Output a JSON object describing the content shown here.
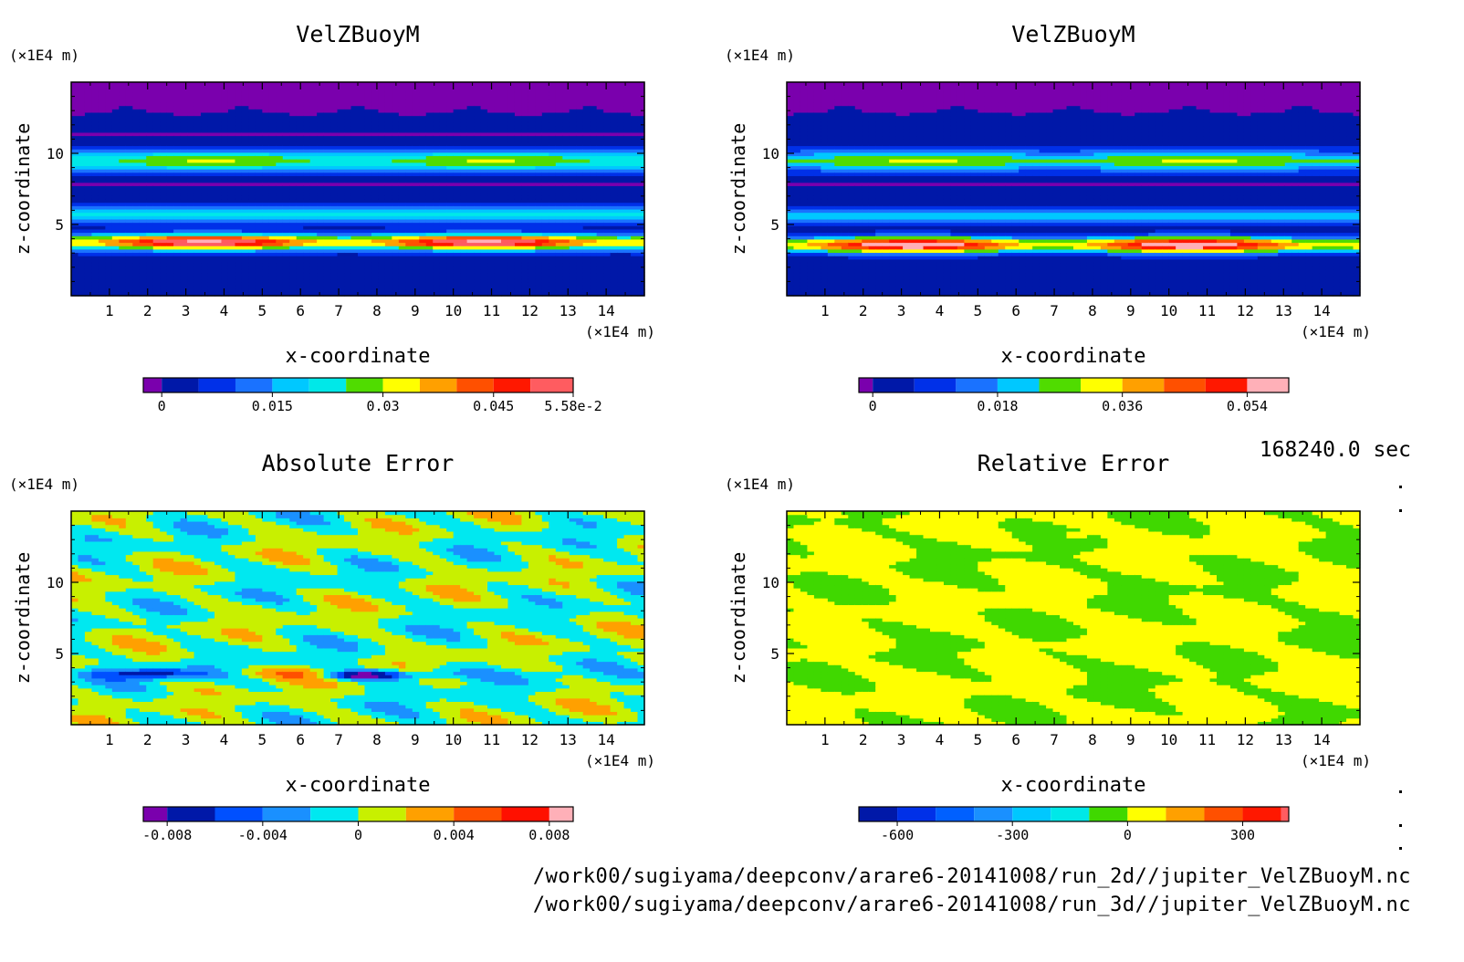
{
  "timestamp": "168240.0 sec",
  "footer": {
    "line1": "/work00/sugiyama/deepconv/arare6-20141008/run_2d//jupiter_VelZBuoyM.nc",
    "line2": "/work00/sugiyama/deepconv/arare6-20141008/run_3d//jupiter_VelZBuoyM.nc"
  },
  "chart_data": [
    {
      "type": "heatmap",
      "title": "VelZBuoyM",
      "xlabel": "x-coordinate",
      "ylabel": "z-coordinate",
      "x_unit": "(×1E4 m)",
      "y_unit": "(×1E4 m)",
      "xlim": [
        0,
        15
      ],
      "ylim": [
        0,
        15
      ],
      "x_ticks": [
        "1",
        "2",
        "3",
        "4",
        "5",
        "6",
        "7",
        "8",
        "9",
        "10",
        "11",
        "12",
        "13",
        "14"
      ],
      "y_ticks": [
        "5",
        "10"
      ],
      "colorbar": {
        "levels": [
          -0.0025,
          0,
          0.005,
          0.01,
          0.015,
          0.02,
          0.025,
          0.03,
          0.035,
          0.04,
          0.045,
          0.05,
          0.0558
        ],
        "tick_labels": [
          {
            "v": 0,
            "t": "0"
          },
          {
            "v": 0.015,
            "t": "0.015"
          },
          {
            "v": 0.03,
            "t": "0.03"
          },
          {
            "v": 0.045,
            "t": "0.045"
          },
          {
            "v": 0.0558,
            "t": "5.58e-2"
          }
        ],
        "colors": [
          "#7a00ad",
          "#0018a8",
          "#0030e8",
          "#1a72ff",
          "#00c8ff",
          "#00e8e8",
          "#50dc00",
          "#ffff00",
          "#ffa000",
          "#ff5000",
          "#ff1800",
          "#ff5c60",
          "#ffb0b8"
        ]
      }
    },
    {
      "type": "heatmap",
      "title": "VelZBuoyM",
      "xlabel": "x-coordinate",
      "ylabel": "z-coordinate",
      "x_unit": "(×1E4 m)",
      "y_unit": "(×1E4 m)",
      "xlim": [
        0,
        15
      ],
      "ylim": [
        0,
        15
      ],
      "x_ticks": [
        "1",
        "2",
        "3",
        "4",
        "5",
        "6",
        "7",
        "8",
        "9",
        "10",
        "11",
        "12",
        "13",
        "14"
      ],
      "y_ticks": [
        "5",
        "10"
      ],
      "colorbar": {
        "levels": [
          -0.002,
          0,
          0.006,
          0.012,
          0.018,
          0.024,
          0.03,
          0.036,
          0.042,
          0.048,
          0.054,
          0.06
        ],
        "tick_labels": [
          {
            "v": 0,
            "t": "0"
          },
          {
            "v": 0.018,
            "t": "0.018"
          },
          {
            "v": 0.036,
            "t": "0.036"
          },
          {
            "v": 0.054,
            "t": "0.054"
          }
        ],
        "colors": [
          "#7a00ad",
          "#0018a8",
          "#0030e8",
          "#1a72ff",
          "#00c8ff",
          "#50dc00",
          "#ffff00",
          "#ffa000",
          "#ff5000",
          "#ff1800",
          "#ffb0b8"
        ]
      }
    },
    {
      "type": "heatmap",
      "title": "Absolute Error",
      "xlabel": "x-coordinate",
      "ylabel": "z-coordinate",
      "x_unit": "(×1E4 m)",
      "y_unit": "(×1E4 m)",
      "xlim": [
        0,
        15
      ],
      "ylim": [
        0,
        15
      ],
      "x_ticks": [
        "1",
        "2",
        "3",
        "4",
        "5",
        "6",
        "7",
        "8",
        "9",
        "10",
        "11",
        "12",
        "13",
        "14"
      ],
      "y_ticks": [
        "5",
        "10"
      ],
      "colorbar": {
        "levels": [
          -0.009,
          -0.008,
          -0.006,
          -0.004,
          -0.002,
          0,
          0.002,
          0.004,
          0.006,
          0.008,
          0.009
        ],
        "tick_labels": [
          {
            "v": -0.008,
            "t": "-0.008"
          },
          {
            "v": -0.004,
            "t": "-0.004"
          },
          {
            "v": 0,
            "t": "0"
          },
          {
            "v": 0.004,
            "t": "0.004"
          },
          {
            "v": 0.008,
            "t": "0.008"
          }
        ],
        "colors": [
          "#7a00ad",
          "#0018a8",
          "#0050ff",
          "#1a90ff",
          "#00e8f0",
          "#c8f000",
          "#ffa000",
          "#ff5000",
          "#ff1000",
          "#ffb0b8"
        ]
      }
    },
    {
      "type": "heatmap",
      "title": "Relative Error",
      "xlabel": "x-coordinate",
      "ylabel": "z-coordinate",
      "x_unit": "(×1E4 m)",
      "y_unit": "(×1E4 m)",
      "xlim": [
        0,
        15
      ],
      "ylim": [
        0,
        15
      ],
      "x_ticks": [
        "1",
        "2",
        "3",
        "4",
        "5",
        "6",
        "7",
        "8",
        "9",
        "10",
        "11",
        "12",
        "13",
        "14"
      ],
      "y_ticks": [
        "5",
        "10"
      ],
      "colorbar": {
        "levels": [
          -700,
          -600,
          -500,
          -400,
          -300,
          -200,
          -100,
          0,
          100,
          200,
          300,
          400,
          420
        ],
        "tick_labels": [
          {
            "v": -600,
            "t": "-600"
          },
          {
            "v": -300,
            "t": "-300"
          },
          {
            "v": 0,
            "t": "0"
          },
          {
            "v": 300,
            "t": "300"
          }
        ],
        "colors": [
          "#0018a8",
          "#0030e8",
          "#0060ff",
          "#1a90ff",
          "#00c8ff",
          "#00e8e8",
          "#40d800",
          "#ffff00",
          "#ffa000",
          "#ff5000",
          "#ff1800",
          "#ff5c60"
        ]
      }
    }
  ]
}
